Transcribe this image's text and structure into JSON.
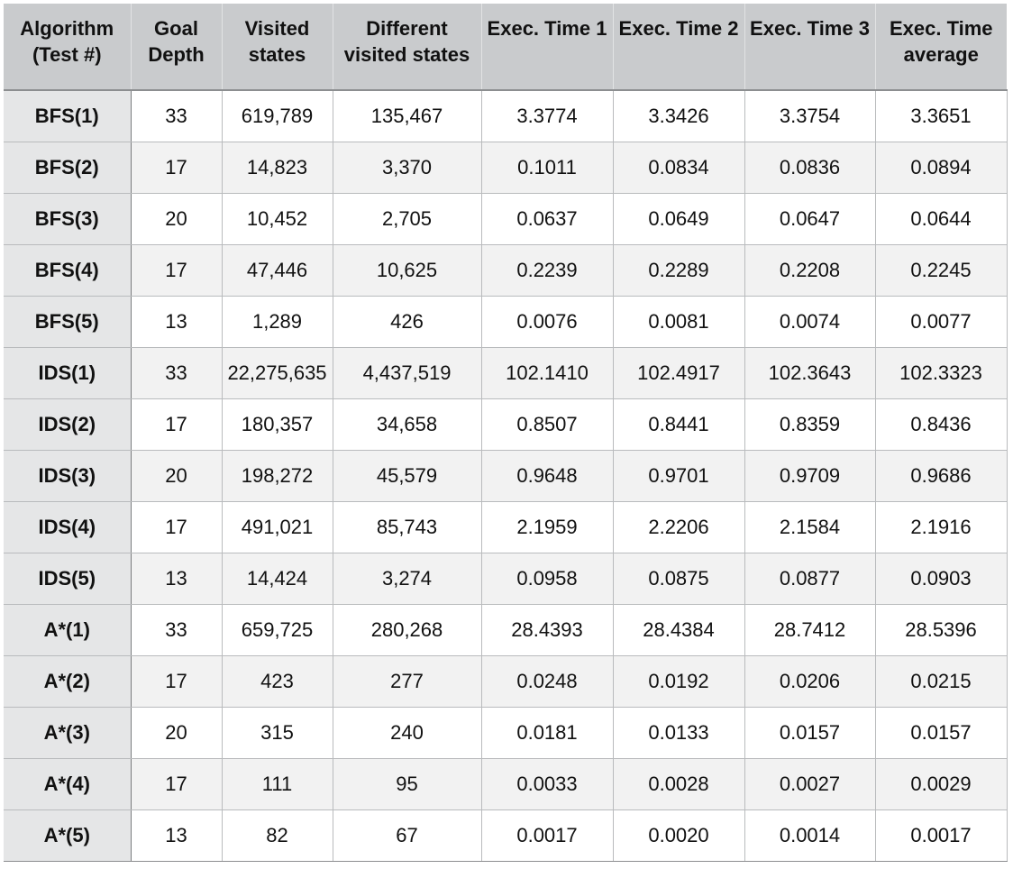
{
  "chart_data": {
    "type": "table",
    "columns": [
      "Algorithm (Test #)",
      "Goal Depth",
      "Visited states",
      "Different visited states",
      "Exec. Time 1",
      "Exec. Time 2",
      "Exec. Time 3",
      "Exec. Time average"
    ],
    "rows": [
      [
        "BFS(1)",
        "33",
        "619,789",
        "135,467",
        "3.3774",
        "3.3426",
        "3.3754",
        "3.3651"
      ],
      [
        "BFS(2)",
        "17",
        "14,823",
        "3,370",
        "0.1011",
        "0.0834",
        "0.0836",
        "0.0894"
      ],
      [
        "BFS(3)",
        "20",
        "10,452",
        "2,705",
        "0.0637",
        "0.0649",
        "0.0647",
        "0.0644"
      ],
      [
        "BFS(4)",
        "17",
        "47,446",
        "10,625",
        "0.2239",
        "0.2289",
        "0.2208",
        "0.2245"
      ],
      [
        "BFS(5)",
        "13",
        "1,289",
        "426",
        "0.0076",
        "0.0081",
        "0.0074",
        "0.0077"
      ],
      [
        "IDS(1)",
        "33",
        "22,275,635",
        "4,437,519",
        "102.1410",
        "102.4917",
        "102.3643",
        "102.3323"
      ],
      [
        "IDS(2)",
        "17",
        "180,357",
        "34,658",
        "0.8507",
        "0.8441",
        "0.8359",
        "0.8436"
      ],
      [
        "IDS(3)",
        "20",
        "198,272",
        "45,579",
        "0.9648",
        "0.9701",
        "0.9709",
        "0.9686"
      ],
      [
        "IDS(4)",
        "17",
        "491,021",
        "85,743",
        "2.1959",
        "2.2206",
        "2.1584",
        "2.1916"
      ],
      [
        "IDS(5)",
        "13",
        "14,424",
        "3,274",
        "0.0958",
        "0.0875",
        "0.0877",
        "0.0903"
      ],
      [
        "A*(1)",
        "33",
        "659,725",
        "280,268",
        "28.4393",
        "28.4384",
        "28.7412",
        "28.5396"
      ],
      [
        "A*(2)",
        "17",
        "423",
        "277",
        "0.0248",
        "0.0192",
        "0.0206",
        "0.0215"
      ],
      [
        "A*(3)",
        "20",
        "315",
        "240",
        "0.0181",
        "0.0133",
        "0.0157",
        "0.0157"
      ],
      [
        "A*(4)",
        "17",
        "111",
        "95",
        "0.0033",
        "0.0028",
        "0.0027",
        "0.0029"
      ],
      [
        "A*(5)",
        "13",
        "82",
        "67",
        "0.0017",
        "0.0020",
        "0.0014",
        "0.0017"
      ]
    ]
  },
  "colors": {
    "header_background": "#c9cbcd",
    "row_label_background": "#e5e6e7",
    "alternate_row_background": "#f2f2f2",
    "text": "#111111"
  }
}
